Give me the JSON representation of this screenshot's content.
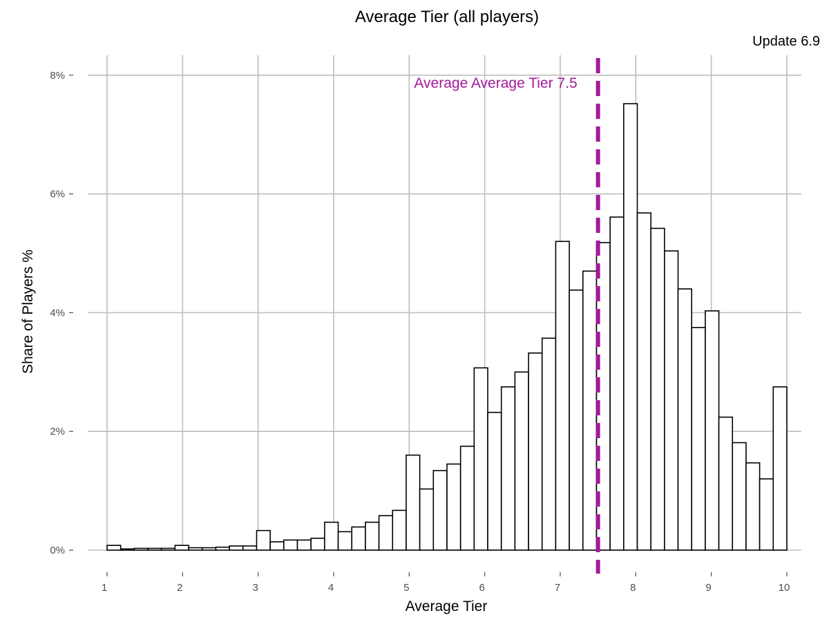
{
  "chart_data": {
    "type": "bar",
    "title": "Average Tier (all players)",
    "subtitle": "Update 6.9",
    "xlabel": "Average Tier",
    "ylabel": "Share of Players %",
    "x_ticks": [
      1,
      2,
      3,
      4,
      5,
      6,
      7,
      8,
      9,
      10
    ],
    "y_ticks": [
      0,
      2,
      4,
      6,
      8
    ],
    "y_tick_labels": [
      "0%",
      "2%",
      "4%",
      "6%",
      "8%"
    ],
    "xlim": [
      0.9,
      10.3
    ],
    "ylim": [
      0,
      8.2
    ],
    "bin_width": 0.18,
    "bin_start": 1.0,
    "values": [
      0.08,
      0.02,
      0.03,
      0.03,
      0.03,
      0.08,
      0.04,
      0.04,
      0.05,
      0.07,
      0.07,
      0.33,
      0.14,
      0.17,
      0.17,
      0.2,
      0.47,
      0.31,
      0.39,
      0.47,
      0.58,
      0.67,
      1.6,
      1.03,
      1.34,
      1.45,
      1.75,
      3.07,
      2.32,
      2.75,
      3.0,
      3.32,
      3.57,
      5.2,
      4.38,
      4.7,
      5.18,
      5.61,
      7.52,
      5.68,
      5.42,
      5.04,
      4.4,
      3.75,
      4.03,
      2.24,
      1.81,
      1.47,
      1.2,
      2.75
    ],
    "grid": true,
    "reference_line": {
      "x": 7.5,
      "label": "Average Average Tier 7.5",
      "color": "#a3199a",
      "style": "dashed"
    }
  }
}
